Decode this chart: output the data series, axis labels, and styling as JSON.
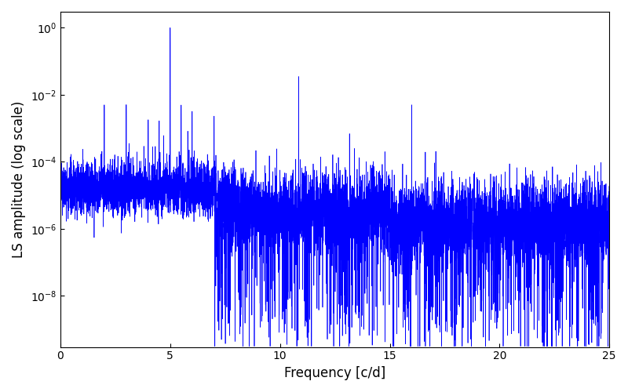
{
  "xlabel": "Frequency [c/d]",
  "ylabel": "LS amplitude (log scale)",
  "line_color": "#0000ff",
  "line_width": 0.5,
  "xlim": [
    0,
    25
  ],
  "ylim": [
    3e-10,
    3
  ],
  "yscale": "log",
  "figsize": [
    8.0,
    5.0
  ],
  "dpi": 100,
  "background_color": "#ffffff",
  "peak1_freq": 5.0,
  "peak1_amp": 1.0,
  "peak2_freq": 10.85,
  "peak2_amp": 0.035,
  "peak3_freq": 16.0,
  "peak3_amp": 0.005,
  "seed": 12345
}
